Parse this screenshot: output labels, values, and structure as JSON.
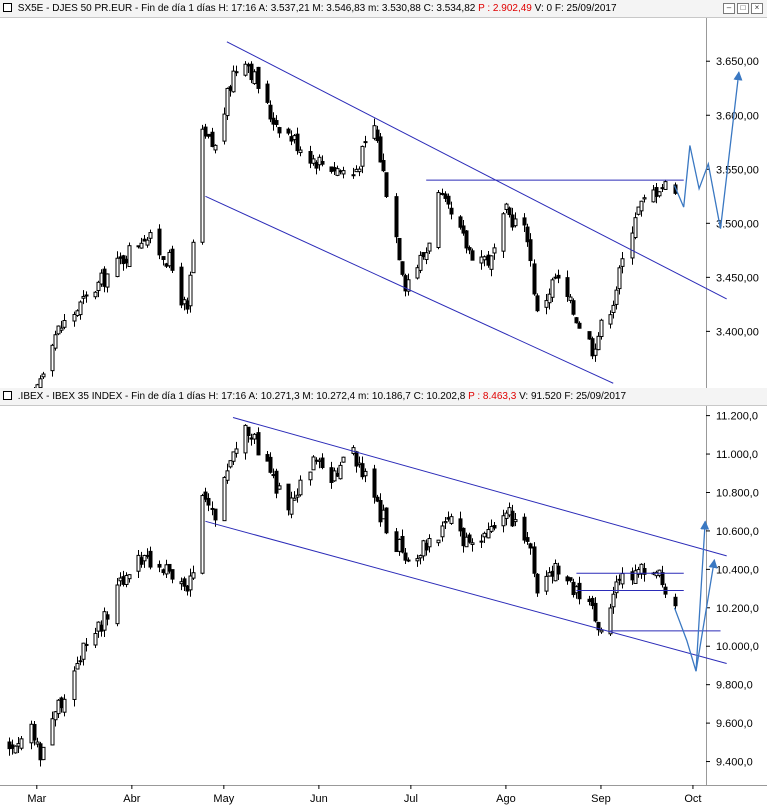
{
  "colors": {
    "channel": "#2b2bb8",
    "forecast": "#3a78c2",
    "candle": "#000000",
    "red": "#e00000"
  },
  "chart_data": [
    {
      "type": "candlestick",
      "header": {
        "symbol": "SX5E - DJES 50 PR.EUR",
        "period": "Fin de día 1 días",
        "h": "H: 17:16",
        "a": "A: 3.537,21",
        "m": "M: 3.546,83",
        "mn": "m: 3.530,88",
        "c": "C: 3.534,82",
        "p": "P : 2.902,49",
        "v": "V: 0",
        "f": "F: 25/09/2017"
      },
      "ylim": [
        3355,
        3690
      ],
      "yticks": [
        "3.650,00",
        "3.600,00",
        "3.550,00",
        "3.500,00",
        "3.450,00",
        "3.400,00"
      ],
      "ytick_values": [
        3650,
        3600,
        3550,
        3500,
        3450,
        3400
      ],
      "anchors": [
        {
          "date": "2017-02-27",
          "close": 3330
        },
        {
          "date": "2017-03-06",
          "close": 3395
        },
        {
          "date": "2017-03-20",
          "close": 3440
        },
        {
          "date": "2017-04-05",
          "close": 3490
        },
        {
          "date": "2017-04-13",
          "close": 3465
        },
        {
          "date": "2017-04-19",
          "close": 3415
        },
        {
          "date": "2017-04-24",
          "close": 3580
        },
        {
          "date": "2017-04-28",
          "close": 3570
        },
        {
          "date": "2017-05-04",
          "close": 3640
        },
        {
          "date": "2017-05-08",
          "close": 3655
        },
        {
          "date": "2017-05-16",
          "close": 3600
        },
        {
          "date": "2017-05-30",
          "close": 3560
        },
        {
          "date": "2017-06-12",
          "close": 3545
        },
        {
          "date": "2017-06-19",
          "close": 3590
        },
        {
          "date": "2017-06-29",
          "close": 3445
        },
        {
          "date": "2017-07-06",
          "close": 3475
        },
        {
          "date": "2017-07-10",
          "close": 3525
        },
        {
          "date": "2017-07-20",
          "close": 3475
        },
        {
          "date": "2017-07-27",
          "close": 3465
        },
        {
          "date": "2017-08-01",
          "close": 3510
        },
        {
          "date": "2017-08-08",
          "close": 3490
        },
        {
          "date": "2017-08-11",
          "close": 3415
        },
        {
          "date": "2017-08-17",
          "close": 3450
        },
        {
          "date": "2017-08-21",
          "close": 3430
        },
        {
          "date": "2017-08-29",
          "close": 3385
        },
        {
          "date": "2017-09-05",
          "close": 3430
        },
        {
          "date": "2017-09-12",
          "close": 3510
        },
        {
          "date": "2017-09-20",
          "close": 3535
        },
        {
          "date": "2017-09-25",
          "close": 3535
        }
      ],
      "lines": [
        {
          "kind": "channel",
          "from": [
            "2017-05-02",
            3668
          ],
          "to": [
            "2017-10-12",
            3430
          ]
        },
        {
          "kind": "channel",
          "from": [
            "2017-04-25",
            3525
          ],
          "to": [
            "2017-09-05",
            3352
          ]
        },
        {
          "kind": "resistance",
          "from": [
            "2017-07-06",
            3540
          ],
          "to": [
            "2017-09-28",
            3540
          ]
        }
      ],
      "forecast": [
        [
          "2017-09-25",
          3535
        ],
        [
          "2017-09-28",
          3515
        ],
        [
          "2017-09-30",
          3572
        ],
        [
          "2017-10-03",
          3532
        ],
        [
          "2017-10-06",
          3555
        ],
        [
          "2017-10-10",
          3495
        ],
        [
          "2017-10-16",
          3640
        ]
      ]
    },
    {
      "type": "candlestick",
      "header": {
        "symbol": ".IBEX - IBEX 35 INDEX",
        "period": "Fin de día 1 días",
        "h": "H: 17:16",
        "a": "A: 10.271,3",
        "m": "M: 10.272,4",
        "mn": "m: 10.186,7",
        "c": "C: 10.202,8",
        "p": "P : 8.463,3",
        "v": "V: 91.520",
        "f": "F: 25/09/2017"
      },
      "ylim": [
        9330,
        11250
      ],
      "yticks": [
        "11.200,0",
        "11.000,0",
        "10.800,0",
        "10.600,0",
        "10.400,0",
        "10.200,0",
        "10.000,0",
        "9.800,0",
        "9.600,0",
        "9.400,0"
      ],
      "ytick_values": [
        11200,
        11000,
        10800,
        10600,
        10400,
        10200,
        10000,
        9800,
        9600,
        9400
      ],
      "anchors": [
        {
          "date": "2017-02-20",
          "close": 9480
        },
        {
          "date": "2017-02-27",
          "close": 9560
        },
        {
          "date": "2017-03-02",
          "close": 9450
        },
        {
          "date": "2017-03-08",
          "close": 9690
        },
        {
          "date": "2017-03-15",
          "close": 9950
        },
        {
          "date": "2017-03-22",
          "close": 10100
        },
        {
          "date": "2017-03-30",
          "close": 10380
        },
        {
          "date": "2017-04-05",
          "close": 10470
        },
        {
          "date": "2017-04-12",
          "close": 10400
        },
        {
          "date": "2017-04-19",
          "close": 10270
        },
        {
          "date": "2017-04-21",
          "close": 10380
        },
        {
          "date": "2017-04-24",
          "close": 10750
        },
        {
          "date": "2017-04-28",
          "close": 10700
        },
        {
          "date": "2017-05-04",
          "close": 11030
        },
        {
          "date": "2017-05-08",
          "close": 11150
        },
        {
          "date": "2017-05-16",
          "close": 10900
        },
        {
          "date": "2017-05-22",
          "close": 10700
        },
        {
          "date": "2017-05-30",
          "close": 10950
        },
        {
          "date": "2017-06-06",
          "close": 10880
        },
        {
          "date": "2017-06-12",
          "close": 11020
        },
        {
          "date": "2017-06-19",
          "close": 10750
        },
        {
          "date": "2017-06-29",
          "close": 10450
        },
        {
          "date": "2017-07-06",
          "close": 10530
        },
        {
          "date": "2017-07-13",
          "close": 10650
        },
        {
          "date": "2017-07-20",
          "close": 10500
        },
        {
          "date": "2017-07-27",
          "close": 10620
        },
        {
          "date": "2017-08-01",
          "close": 10700
        },
        {
          "date": "2017-08-08",
          "close": 10580
        },
        {
          "date": "2017-08-11",
          "close": 10300
        },
        {
          "date": "2017-08-17",
          "close": 10420
        },
        {
          "date": "2017-08-21",
          "close": 10350
        },
        {
          "date": "2017-08-29",
          "close": 10180
        },
        {
          "date": "2017-09-01",
          "close": 10100
        },
        {
          "date": "2017-09-05",
          "close": 10270
        },
        {
          "date": "2017-09-08",
          "close": 10350
        },
        {
          "date": "2017-09-13",
          "close": 10390
        },
        {
          "date": "2017-09-20",
          "close": 10360
        },
        {
          "date": "2017-09-25",
          "close": 10200
        }
      ],
      "lines": [
        {
          "kind": "channel",
          "from": [
            "2017-05-04",
            11190
          ],
          "to": [
            "2017-10-12",
            10470
          ]
        },
        {
          "kind": "channel",
          "from": [
            "2017-04-25",
            10650
          ],
          "to": [
            "2017-10-12",
            9910
          ]
        },
        {
          "kind": "resistance",
          "from": [
            "2017-08-24",
            10380
          ],
          "to": [
            "2017-09-28",
            10380
          ]
        },
        {
          "kind": "support",
          "from": [
            "2017-08-24",
            10290
          ],
          "to": [
            "2017-09-28",
            10290
          ]
        },
        {
          "kind": "support",
          "from": [
            "2017-09-04",
            10080
          ],
          "to": [
            "2017-10-10",
            10080
          ]
        }
      ],
      "forecast": [
        [
          "2017-09-25",
          10200
        ],
        [
          "2017-09-29",
          10030
        ],
        [
          "2017-10-02",
          9870
        ],
        [
          "2017-10-05",
          10650
        ]
      ],
      "forecast2": [
        [
          "2017-10-02",
          9870
        ],
        [
          "2017-10-08",
          10450
        ]
      ]
    }
  ],
  "xaxis": {
    "labels": [
      "Mar",
      "Abr",
      "May",
      "Jun",
      "Jul",
      "Ago",
      "Sep",
      "Oct"
    ],
    "dates": [
      "2017-03-01",
      "2017-04-01",
      "2017-05-01",
      "2017-06-01",
      "2017-07-01",
      "2017-08-01",
      "2017-09-01",
      "2017-10-01"
    ]
  }
}
